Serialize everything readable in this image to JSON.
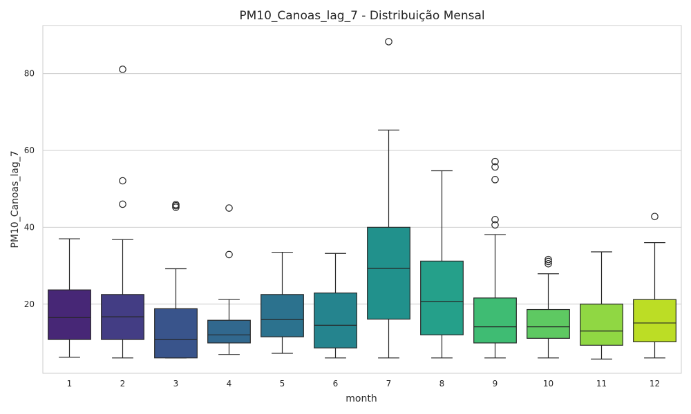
{
  "chart_data": {
    "type": "box",
    "title": "PM10_Canoas_lag_7 - Distribuição Mensal",
    "xlabel": "month",
    "ylabel": "PM10_Canoas_lag_7",
    "ylim": [
      2,
      92.5
    ],
    "yticks": [
      20,
      40,
      60,
      80
    ],
    "grid": "horizontal",
    "categories": [
      "1",
      "2",
      "3",
      "4",
      "5",
      "6",
      "7",
      "8",
      "9",
      "10",
      "11",
      "12"
    ],
    "colors": [
      "#472776",
      "#433d84",
      "#39548b",
      "#31688e",
      "#2c728e",
      "#25848e",
      "#21918c",
      "#25a08a",
      "#3fbc73",
      "#5ec962",
      "#90d743",
      "#bcdd25"
    ],
    "boxes": [
      {
        "month": "1",
        "whislo": 6.2,
        "q1": 10.8,
        "med": 16.5,
        "q3": 23.7,
        "whishi": 37.0,
        "fliers": []
      },
      {
        "month": "2",
        "whislo": 6.0,
        "q1": 10.8,
        "med": 16.7,
        "q3": 22.5,
        "whishi": 36.8,
        "fliers": [
          81.1,
          52.1,
          46.0
        ]
      },
      {
        "month": "3",
        "whislo": 6.0,
        "q1": 6.0,
        "med": 10.8,
        "q3": 18.8,
        "whishi": 29.2,
        "fliers": [
          45.9,
          45.6,
          45.2
        ]
      },
      {
        "month": "4",
        "whislo": 6.9,
        "q1": 9.9,
        "med": 12.0,
        "q3": 15.8,
        "whishi": 21.2,
        "fliers": [
          45.0,
          32.9
        ]
      },
      {
        "month": "5",
        "whislo": 7.2,
        "q1": 11.5,
        "med": 16.0,
        "q3": 22.5,
        "whishi": 33.5,
        "fliers": []
      },
      {
        "month": "6",
        "whislo": 6.0,
        "q1": 8.6,
        "med": 14.5,
        "q3": 22.9,
        "whishi": 33.2,
        "fliers": []
      },
      {
        "month": "7",
        "whislo": 6.0,
        "q1": 16.1,
        "med": 29.3,
        "q3": 40.0,
        "whishi": 65.3,
        "fliers": [
          88.3
        ]
      },
      {
        "month": "8",
        "whislo": 6.0,
        "q1": 12.0,
        "med": 20.7,
        "q3": 31.2,
        "whishi": 54.7,
        "fliers": []
      },
      {
        "month": "9",
        "whislo": 6.0,
        "q1": 9.9,
        "med": 14.1,
        "q3": 21.6,
        "whishi": 38.1,
        "fliers": [
          57.1,
          55.7,
          52.4,
          42.0,
          40.6
        ]
      },
      {
        "month": "10",
        "whislo": 6.0,
        "q1": 11.1,
        "med": 14.1,
        "q3": 18.6,
        "whishi": 27.9,
        "fliers": [
          31.6,
          31.1,
          30.5
        ]
      },
      {
        "month": "11",
        "whislo": 5.7,
        "q1": 9.3,
        "med": 13.0,
        "q3": 20.0,
        "whishi": 33.6,
        "fliers": []
      },
      {
        "month": "12",
        "whislo": 6.0,
        "q1": 10.2,
        "med": 15.1,
        "q3": 21.2,
        "whishi": 36.0,
        "fliers": [
          42.8
        ]
      }
    ]
  }
}
